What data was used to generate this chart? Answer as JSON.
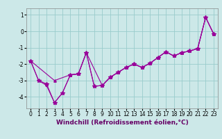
{
  "xlabel": "Windchill (Refroidissement éolien,°C)",
  "bg_color": "#cce8e8",
  "line_color": "#990099",
  "grid_color": "#99cccc",
  "xlim": [
    -0.5,
    23.5
  ],
  "ylim": [
    -4.7,
    1.4
  ],
  "xticks": [
    0,
    1,
    2,
    3,
    4,
    5,
    6,
    7,
    8,
    9,
    10,
    11,
    12,
    13,
    14,
    15,
    16,
    17,
    18,
    19,
    20,
    21,
    22,
    23
  ],
  "yticks": [
    -4,
    -3,
    -2,
    -1,
    0,
    1
  ],
  "xlabel_fontsize": 6.5,
  "tick_fontsize": 5.5,
  "s1_x": [
    0,
    1,
    2,
    3,
    4,
    5,
    6,
    7,
    8,
    9,
    10,
    11,
    12,
    13,
    14,
    15,
    16,
    17,
    18,
    19,
    20,
    21,
    22,
    23
  ],
  "s1_y": [
    -1.8,
    -3.0,
    -3.2,
    -4.35,
    -3.75,
    -2.65,
    -2.6,
    -1.3,
    -3.35,
    -3.3,
    -2.8,
    -2.5,
    -2.2,
    -2.0,
    -2.2,
    -1.95,
    -1.6,
    -1.25,
    -1.5,
    -1.3,
    -1.2,
    -1.05,
    0.85,
    -0.15
  ],
  "s2_x": [
    0,
    1,
    2,
    3,
    4,
    5,
    6,
    7,
    8,
    9,
    10,
    11,
    12,
    13,
    14,
    15,
    16,
    17,
    18,
    19,
    20,
    21,
    22,
    23
  ],
  "s2_y": [
    -1.8,
    -3.0,
    -3.3,
    -4.35,
    -3.75,
    -2.65,
    -2.6,
    -1.3,
    -3.35,
    -3.3,
    -2.8,
    -2.5,
    -2.2,
    -2.0,
    -2.2,
    -1.95,
    -1.6,
    -1.25,
    -1.5,
    -1.3,
    -1.2,
    -1.05,
    0.85,
    -0.15
  ],
  "s3_x": [
    0,
    3,
    5,
    6,
    7,
    9,
    10,
    11,
    12,
    13,
    14,
    15,
    16,
    17,
    18,
    19,
    20,
    21,
    22,
    23
  ],
  "s3_y": [
    -1.8,
    -3.0,
    -2.65,
    -2.6,
    -1.3,
    -3.3,
    -2.8,
    -2.5,
    -2.2,
    -2.0,
    -2.2,
    -1.95,
    -1.6,
    -1.25,
    -1.5,
    -1.3,
    -1.2,
    -1.05,
    0.85,
    -0.15
  ]
}
